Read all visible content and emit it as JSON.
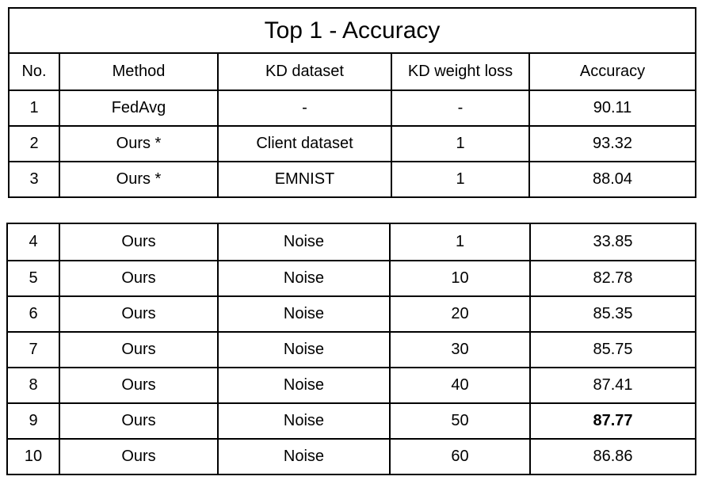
{
  "title": "Top 1 - Accuracy",
  "headers": [
    "No.",
    "Method",
    "KD dataset",
    "KD weight loss",
    "Accuracy"
  ],
  "table_top_rows": [
    {
      "no": "1",
      "method": "FedAvg",
      "kd_dataset": "-",
      "kd_weight": "-",
      "accuracy": "90.11"
    },
    {
      "no": "2",
      "method": "Ours *",
      "kd_dataset": "Client dataset",
      "kd_weight": "1",
      "accuracy": "93.32"
    },
    {
      "no": "3",
      "method": "Ours *",
      "kd_dataset": "EMNIST",
      "kd_weight": "1",
      "accuracy": "88.04"
    }
  ],
  "table_bottom_rows": [
    {
      "no": "4",
      "method": "Ours",
      "kd_dataset": "Noise",
      "kd_weight": "1",
      "accuracy": "33.85"
    },
    {
      "no": "5",
      "method": "Ours",
      "kd_dataset": "Noise",
      "kd_weight": "10",
      "accuracy": "82.78"
    },
    {
      "no": "6",
      "method": "Ours",
      "kd_dataset": "Noise",
      "kd_weight": "20",
      "accuracy": "85.35"
    },
    {
      "no": "7",
      "method": "Ours",
      "kd_dataset": "Noise",
      "kd_weight": "30",
      "accuracy": "85.75"
    },
    {
      "no": "8",
      "method": "Ours",
      "kd_dataset": "Noise",
      "kd_weight": "40",
      "accuracy": "87.41"
    },
    {
      "no": "9",
      "method": "Ours",
      "kd_dataset": "Noise",
      "kd_weight": "50",
      "accuracy": "87.77"
    },
    {
      "no": "10",
      "method": "Ours",
      "kd_dataset": "Noise",
      "kd_weight": "60",
      "accuracy": "86.86"
    }
  ],
  "best_accuracy_row_no": "9"
}
